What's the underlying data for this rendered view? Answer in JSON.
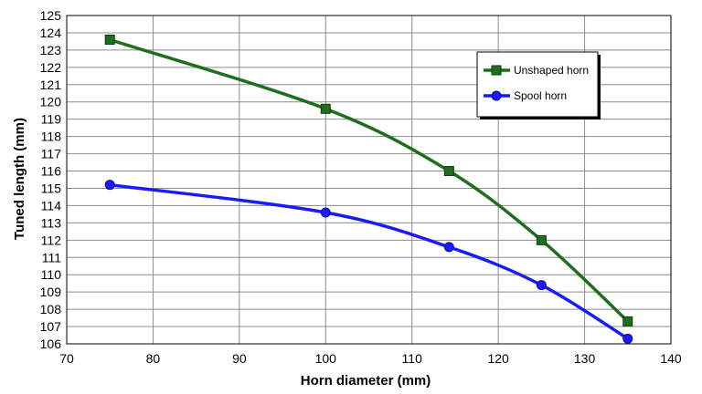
{
  "chart_data": {
    "type": "line",
    "title": "",
    "xlabel": "Horn diameter (mm)",
    "ylabel": "Tuned length (mm)",
    "xlim": [
      70,
      140
    ],
    "ylim": [
      106,
      125
    ],
    "x_ticks": [
      70,
      80,
      90,
      100,
      110,
      120,
      130,
      140
    ],
    "y_ticks": [
      106,
      107,
      108,
      109,
      110,
      111,
      112,
      113,
      114,
      115,
      116,
      117,
      118,
      119,
      120,
      121,
      122,
      123,
      124,
      125
    ],
    "grid": true,
    "legend_position": "top-right",
    "series": [
      {
        "name": "Unshaped horn",
        "color": "#1e6e1e",
        "marker": "square",
        "x": [
          75,
          100,
          114.3,
          125,
          135
        ],
        "y": [
          123.6,
          119.6,
          116.0,
          112.0,
          107.3
        ]
      },
      {
        "name": "Spool horn",
        "color": "#1a1aff",
        "marker": "circle",
        "x": [
          75,
          100,
          114.3,
          125,
          135
        ],
        "y": [
          115.2,
          113.6,
          111.6,
          109.4,
          106.3
        ]
      }
    ]
  }
}
